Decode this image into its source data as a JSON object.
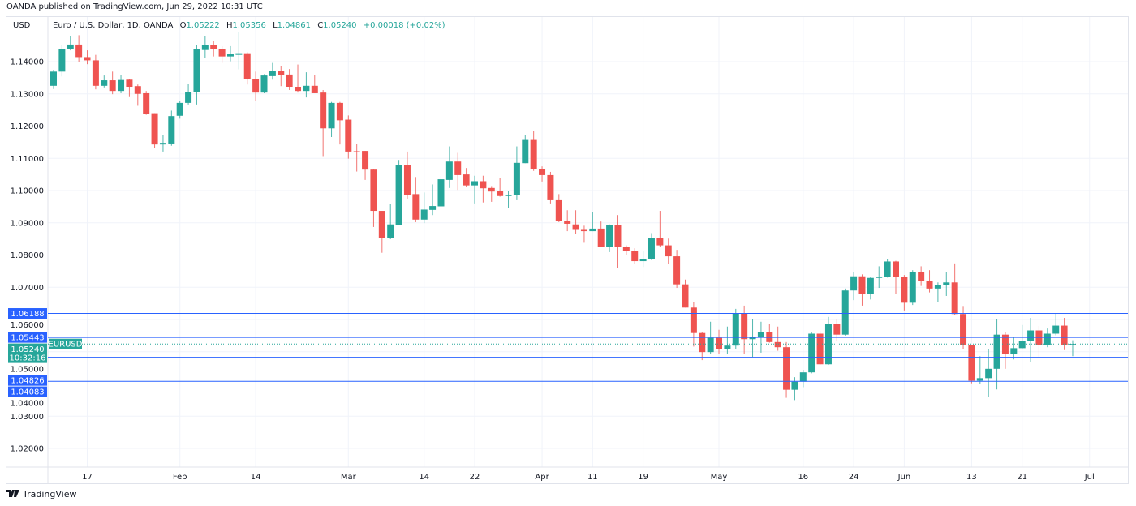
{
  "header": {
    "published": "OANDA published on TradingView.com, Jun 29, 2022 10:31 UTC",
    "currency": "USD",
    "symbol_title": "Euro / U.S. Dollar, 1D, OANDA",
    "ohlc": {
      "o_label": "O",
      "o": "1.05222",
      "h_label": "H",
      "h": "1.05356",
      "l_label": "L",
      "l": "1.04861",
      "c_label": "C",
      "c": "1.05240",
      "change": "+0.00018 (+0.02%)"
    }
  },
  "footer": {
    "brand": "TradingView",
    "logo_text": "17"
  },
  "colors": {
    "up": "#26a69a",
    "down": "#ef5350",
    "level_line": "#2962ff",
    "grid": "#f0f3fa"
  },
  "chart_data": {
    "type": "candlestick",
    "symbol": "EURUSD",
    "ylim": [
      1.015,
      1.151
    ],
    "grid": true,
    "y_ticks": [
      "1.14000",
      "1.13000",
      "1.12000",
      "1.11000",
      "1.10000",
      "1.09000",
      "1.08000",
      "1.07000",
      "1.06000",
      "1.05000",
      "1.04000",
      "1.03000",
      "1.02000"
    ],
    "x_ticks": [
      {
        "date": "2022-01-17",
        "label": "17"
      },
      {
        "date": "2022-02-01",
        "label": "Feb"
      },
      {
        "date": "2022-02-14",
        "label": "14"
      },
      {
        "date": "2022-03-01",
        "label": "Mar"
      },
      {
        "date": "2022-03-14",
        "label": "14"
      },
      {
        "date": "2022-03-22",
        "label": "22"
      },
      {
        "date": "2022-04-01",
        "label": "Apr"
      },
      {
        "date": "2022-04-11",
        "label": "11"
      },
      {
        "date": "2022-04-19",
        "label": "19"
      },
      {
        "date": "2022-05-02",
        "label": "May"
      },
      {
        "date": "2022-05-16",
        "label": "16"
      },
      {
        "date": "2022-05-24",
        "label": "24"
      },
      {
        "date": "2022-06-01",
        "label": "Jun"
      },
      {
        "date": "2022-06-13",
        "label": "13"
      },
      {
        "date": "2022-06-21",
        "label": "21"
      },
      {
        "date": "2022-07-01",
        "label": "Jul"
      }
    ],
    "levels": [
      {
        "value": 1.06188,
        "label": "1.06188"
      },
      {
        "value": 1.05443,
        "label": "1.05443"
      },
      {
        "value": 1.04826,
        "label": "1.04826"
      },
      {
        "value": 1.04083,
        "label": "1.04083"
      }
    ],
    "last_price": {
      "value": 1.0524,
      "label": "1.05240",
      "countdown": "10:32:16",
      "symbol_tag": "EURUSD"
    },
    "columns": [
      "date",
      "open",
      "high",
      "low",
      "close"
    ],
    "candles": [
      [
        "2022-01-11",
        1.1325,
        1.1375,
        1.1315,
        1.1369
      ],
      [
        "2022-01-12",
        1.1369,
        1.1451,
        1.1354,
        1.144
      ],
      [
        "2022-01-13",
        1.144,
        1.148,
        1.1435,
        1.1453
      ],
      [
        "2022-01-14",
        1.1453,
        1.1482,
        1.1398,
        1.1414
      ],
      [
        "2022-01-17",
        1.1414,
        1.1435,
        1.1392,
        1.1404
      ],
      [
        "2022-01-18",
        1.1404,
        1.1421,
        1.1314,
        1.1325
      ],
      [
        "2022-01-19",
        1.1325,
        1.1357,
        1.132,
        1.1342
      ],
      [
        "2022-01-20",
        1.1342,
        1.1369,
        1.1299,
        1.1309
      ],
      [
        "2022-01-21",
        1.1309,
        1.1359,
        1.1302,
        1.1343
      ],
      [
        "2022-01-24",
        1.1344,
        1.1346,
        1.129,
        1.1322
      ],
      [
        "2022-01-25",
        1.1324,
        1.1329,
        1.1263,
        1.13
      ],
      [
        "2022-01-26",
        1.1302,
        1.1309,
        1.1235,
        1.1238
      ],
      [
        "2022-01-27",
        1.124,
        1.124,
        1.1131,
        1.1143
      ],
      [
        "2022-01-28",
        1.1143,
        1.1173,
        1.1121,
        1.1148
      ],
      [
        "2022-01-31",
        1.1146,
        1.1248,
        1.1139,
        1.1231
      ],
      [
        "2022-02-01",
        1.1232,
        1.1278,
        1.1223,
        1.1272
      ],
      [
        "2022-02-02",
        1.1272,
        1.133,
        1.1267,
        1.1305
      ],
      [
        "2022-02-03",
        1.1305,
        1.1451,
        1.1267,
        1.1438
      ],
      [
        "2022-02-04",
        1.1436,
        1.148,
        1.1411,
        1.1451
      ],
      [
        "2022-02-07",
        1.1451,
        1.1463,
        1.1416,
        1.144
      ],
      [
        "2022-02-08",
        1.144,
        1.1448,
        1.1396,
        1.1416
      ],
      [
        "2022-02-09",
        1.1416,
        1.1448,
        1.1401,
        1.1423
      ],
      [
        "2022-02-10",
        1.1421,
        1.1493,
        1.1376,
        1.1426
      ],
      [
        "2022-02-11",
        1.1426,
        1.1429,
        1.1329,
        1.1345
      ],
      [
        "2022-02-14",
        1.1345,
        1.1369,
        1.1278,
        1.1304
      ],
      [
        "2022-02-15",
        1.1304,
        1.1361,
        1.1302,
        1.1357
      ],
      [
        "2022-02-16",
        1.1355,
        1.1396,
        1.1344,
        1.1372
      ],
      [
        "2022-02-17",
        1.1372,
        1.1386,
        1.1324,
        1.1359
      ],
      [
        "2022-02-18",
        1.136,
        1.1377,
        1.1312,
        1.1322
      ],
      [
        "2022-02-21",
        1.1322,
        1.1391,
        1.1304,
        1.1309
      ],
      [
        "2022-02-22",
        1.1309,
        1.1367,
        1.1289,
        1.1325
      ],
      [
        "2022-02-23",
        1.1325,
        1.1359,
        1.1302,
        1.1302
      ],
      [
        "2022-02-24",
        1.1304,
        1.1312,
        1.1107,
        1.1193
      ],
      [
        "2022-02-25",
        1.1193,
        1.1275,
        1.1166,
        1.1272
      ],
      [
        "2022-02-28",
        1.1272,
        1.1275,
        1.1143,
        1.1218
      ],
      [
        "2022-03-01",
        1.122,
        1.1233,
        1.1099,
        1.1121
      ],
      [
        "2022-03-02",
        1.1122,
        1.1145,
        1.1059,
        1.112
      ],
      [
        "2022-03-03",
        1.1123,
        1.1123,
        1.1033,
        1.1065
      ],
      [
        "2022-03-04",
        1.1065,
        1.1067,
        1.0887,
        1.0937
      ],
      [
        "2022-03-07",
        1.0937,
        1.0937,
        1.0807,
        1.0853
      ],
      [
        "2022-03-08",
        1.0853,
        1.0958,
        1.0849,
        1.0895
      ],
      [
        "2022-03-09",
        1.0893,
        1.1095,
        1.0893,
        1.1078
      ],
      [
        "2022-03-10",
        1.1078,
        1.1121,
        1.0975,
        1.0987
      ],
      [
        "2022-03-11",
        1.0989,
        1.1042,
        1.0902,
        1.091
      ],
      [
        "2022-03-14",
        1.091,
        1.0994,
        1.0899,
        1.0941
      ],
      [
        "2022-03-15",
        1.094,
        1.1019,
        1.0924,
        1.0952
      ],
      [
        "2022-03-16",
        1.0951,
        1.1046,
        1.095,
        1.1035
      ],
      [
        "2022-03-17",
        1.1033,
        1.1137,
        1.1008,
        1.109
      ],
      [
        "2022-03-18",
        1.109,
        1.1117,
        1.1002,
        1.1048
      ],
      [
        "2022-03-21",
        1.105,
        1.107,
        1.1011,
        1.1016
      ],
      [
        "2022-03-22",
        1.1016,
        1.1046,
        1.096,
        1.1029
      ],
      [
        "2022-03-23",
        1.1029,
        1.1046,
        1.0963,
        1.1007
      ],
      [
        "2022-03-24",
        1.1008,
        1.1014,
        1.0965,
        1.0997
      ],
      [
        "2022-03-25",
        1.0998,
        1.1039,
        1.0981,
        1.0983
      ],
      [
        "2022-03-28",
        1.0983,
        1.0999,
        1.0945,
        1.0986
      ],
      [
        "2022-03-29",
        1.0985,
        1.1137,
        1.097,
        1.1086
      ],
      [
        "2022-03-30",
        1.1085,
        1.1172,
        1.1085,
        1.1157
      ],
      [
        "2022-03-31",
        1.1157,
        1.1184,
        1.1061,
        1.1066
      ],
      [
        "2022-04-01",
        1.1067,
        1.1075,
        1.1028,
        1.1048
      ],
      [
        "2022-04-04",
        1.1048,
        1.1058,
        1.096,
        1.097
      ],
      [
        "2022-04-05",
        1.097,
        1.0989,
        1.0902,
        1.0905
      ],
      [
        "2022-04-06",
        1.0905,
        1.0939,
        1.0874,
        1.0897
      ],
      [
        "2022-04-07",
        1.0895,
        1.0939,
        1.0866,
        1.0878
      ],
      [
        "2022-04-08",
        1.0878,
        1.0891,
        1.0838,
        1.0874
      ],
      [
        "2022-04-11",
        1.0874,
        1.0933,
        1.0874,
        1.0882
      ],
      [
        "2022-04-12",
        1.0882,
        1.0904,
        1.0824,
        1.0826
      ],
      [
        "2022-04-13",
        1.0826,
        1.0895,
        1.0809,
        1.0893
      ],
      [
        "2022-04-14",
        1.0893,
        1.0924,
        1.0759,
        1.0826
      ],
      [
        "2022-04-15",
        1.0826,
        1.083,
        1.0799,
        1.0813
      ],
      [
        "2022-04-18",
        1.0813,
        1.0821,
        1.0771,
        1.0781
      ],
      [
        "2022-04-19",
        1.0781,
        1.0813,
        1.0763,
        1.0788
      ],
      [
        "2022-04-20",
        1.0788,
        1.0868,
        1.0784,
        1.0853
      ],
      [
        "2022-04-21",
        1.0853,
        1.0937,
        1.0824,
        1.083
      ],
      [
        "2022-04-22",
        1.083,
        1.0851,
        1.0771,
        1.0796
      ],
      [
        "2022-04-25",
        1.0796,
        1.0816,
        1.0698,
        1.0709
      ],
      [
        "2022-04-26",
        1.0709,
        1.0724,
        1.0637,
        1.0637
      ],
      [
        "2022-04-27",
        1.0637,
        1.0653,
        1.0516,
        1.0558
      ],
      [
        "2022-04-28",
        1.0558,
        1.0562,
        1.0474,
        1.0499
      ],
      [
        "2022-04-29",
        1.0499,
        1.0593,
        1.0494,
        1.0543
      ],
      [
        "2022-05-02",
        1.0543,
        1.0568,
        1.0492,
        1.0508
      ],
      [
        "2022-05-03",
        1.0508,
        1.0578,
        1.0494,
        1.0519
      ],
      [
        "2022-05-04",
        1.0519,
        1.0633,
        1.0508,
        1.062
      ],
      [
        "2022-05-05",
        1.062,
        1.0643,
        1.0494,
        1.0539
      ],
      [
        "2022-05-06",
        1.0539,
        1.06,
        1.0484,
        1.0545
      ],
      [
        "2022-05-09",
        1.0545,
        1.0593,
        1.0497,
        1.056
      ],
      [
        "2022-05-10",
        1.056,
        1.0585,
        1.0528,
        1.053
      ],
      [
        "2022-05-11",
        1.053,
        1.0578,
        1.0503,
        1.0514
      ],
      [
        "2022-05-12",
        1.0514,
        1.053,
        1.0357,
        1.0382
      ],
      [
        "2022-05-13",
        1.0382,
        1.0421,
        1.035,
        1.0407
      ],
      [
        "2022-05-16",
        1.0407,
        1.0444,
        1.039,
        1.0436
      ],
      [
        "2022-05-17",
        1.0436,
        1.056,
        1.0433,
        1.0556
      ],
      [
        "2022-05-18",
        1.0556,
        1.0564,
        1.0459,
        1.0461
      ],
      [
        "2022-05-19",
        1.0461,
        1.0608,
        1.0459,
        1.0585
      ],
      [
        "2022-05-20",
        1.0585,
        1.06,
        1.0534,
        1.0553
      ],
      [
        "2022-05-23",
        1.0553,
        1.0696,
        1.055,
        1.069
      ],
      [
        "2022-05-24",
        1.069,
        1.0748,
        1.066,
        1.0734
      ],
      [
        "2022-05-25",
        1.0734,
        1.074,
        1.0643,
        1.0679
      ],
      [
        "2022-05-26",
        1.0679,
        1.0731,
        1.0662,
        1.0729
      ],
      [
        "2022-05-27",
        1.0729,
        1.0765,
        1.0698,
        1.0733
      ],
      [
        "2022-05-30",
        1.0733,
        1.0788,
        1.073,
        1.078
      ],
      [
        "2022-05-31",
        1.078,
        1.0782,
        1.0678,
        1.0731
      ],
      [
        "2022-06-01",
        1.0731,
        1.0738,
        1.0628,
        1.0652
      ],
      [
        "2022-06-02",
        1.0652,
        1.0753,
        1.0645,
        1.0748
      ],
      [
        "2022-06-03",
        1.0748,
        1.0765,
        1.0704,
        1.0719
      ],
      [
        "2022-06-06",
        1.0719,
        1.0753,
        1.0684,
        1.0696
      ],
      [
        "2022-06-07",
        1.0696,
        1.0715,
        1.0654,
        1.0706
      ],
      [
        "2022-06-08",
        1.0706,
        1.0748,
        1.0673,
        1.0715
      ],
      [
        "2022-06-09",
        1.0715,
        1.0774,
        1.0614,
        1.0617
      ],
      [
        "2022-06-10",
        1.0617,
        1.0642,
        1.0508,
        1.0522
      ],
      [
        "2022-06-13",
        1.052,
        1.0522,
        1.0402,
        1.041
      ],
      [
        "2022-06-14",
        1.041,
        1.0486,
        1.0399,
        1.0418
      ],
      [
        "2022-06-15",
        1.0418,
        1.0508,
        1.036,
        1.0447
      ],
      [
        "2022-06-16",
        1.0447,
        1.0602,
        1.0383,
        1.0553
      ],
      [
        "2022-06-17",
        1.0553,
        1.0561,
        1.0447,
        1.0492
      ],
      [
        "2022-06-20",
        1.0492,
        1.0547,
        1.0476,
        1.0511
      ],
      [
        "2022-06-21",
        1.0511,
        1.0583,
        1.0509,
        1.0534
      ],
      [
        "2022-06-22",
        1.0534,
        1.0605,
        1.0469,
        1.0566
      ],
      [
        "2022-06-23",
        1.0566,
        1.058,
        1.0484,
        1.0522
      ],
      [
        "2022-06-24",
        1.0522,
        1.0572,
        1.0514,
        1.0556
      ],
      [
        "2022-06-27",
        1.0556,
        1.0618,
        1.0551,
        1.0581
      ],
      [
        "2022-06-28",
        1.0581,
        1.0605,
        1.0505,
        1.0522
      ],
      [
        "2022-06-29",
        1.05222,
        1.05356,
        1.04861,
        1.0524
      ]
    ]
  }
}
